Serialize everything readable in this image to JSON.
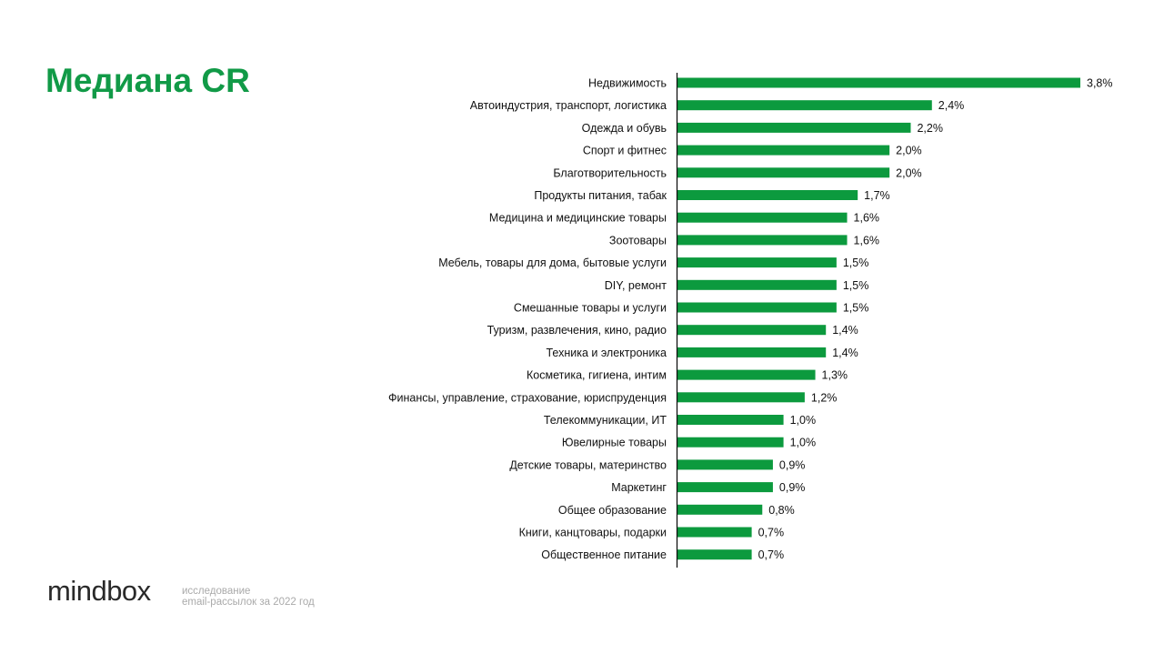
{
  "chart_data": {
    "type": "bar",
    "orientation": "horizontal",
    "title": "Медиана CR",
    "xlabel": "",
    "ylabel": "",
    "unit": "%",
    "xlim": [
      0,
      3.8
    ],
    "grid": false,
    "bar_color": "#0c9a3e",
    "categories": [
      "Недвижимость",
      "Автоиндустрия, транспорт, логистика",
      "Одежда и обувь",
      "Спорт и фитнес",
      "Благотворительность",
      "Продукты питания, табак",
      "Медицина и медицинские товары",
      "Зоотовары",
      "Мебель, товары для дома, бытовые услуги",
      "DIY, ремонт",
      "Смешанные товары и услуги",
      "Туризм, развлечения, кино, радио",
      "Техника и электроника",
      "Косметика, гигиена, интим",
      "Финансы, управление, страхование, юриспруденция",
      "Телекоммуникации, ИТ",
      "Ювелирные товары",
      "Детские товары, материнство",
      "Маркетинг",
      "Общее образование",
      "Книги, канцтовары, подарки",
      "Общественное питание"
    ],
    "values": [
      3.8,
      2.4,
      2.2,
      2.0,
      2.0,
      1.7,
      1.6,
      1.6,
      1.5,
      1.5,
      1.5,
      1.4,
      1.4,
      1.3,
      1.2,
      1.0,
      1.0,
      0.9,
      0.9,
      0.8,
      0.7,
      0.7
    ],
    "value_labels": [
      "3,8%",
      "2,4%",
      "2,2%",
      "2,0%",
      "2,0%",
      "1,7%",
      "1,6%",
      "1,6%",
      "1,5%",
      "1,5%",
      "1,5%",
      "1,4%",
      "1,4%",
      "1,3%",
      "1,2%",
      "1,0%",
      "1,0%",
      "0,9%",
      "0,9%",
      "0,8%",
      "0,7%",
      "0,7%"
    ]
  },
  "footer": {
    "logo": "mindbox",
    "subtitle_line1": "исследование",
    "subtitle_line2": "email-рассылок за 2022 год"
  }
}
